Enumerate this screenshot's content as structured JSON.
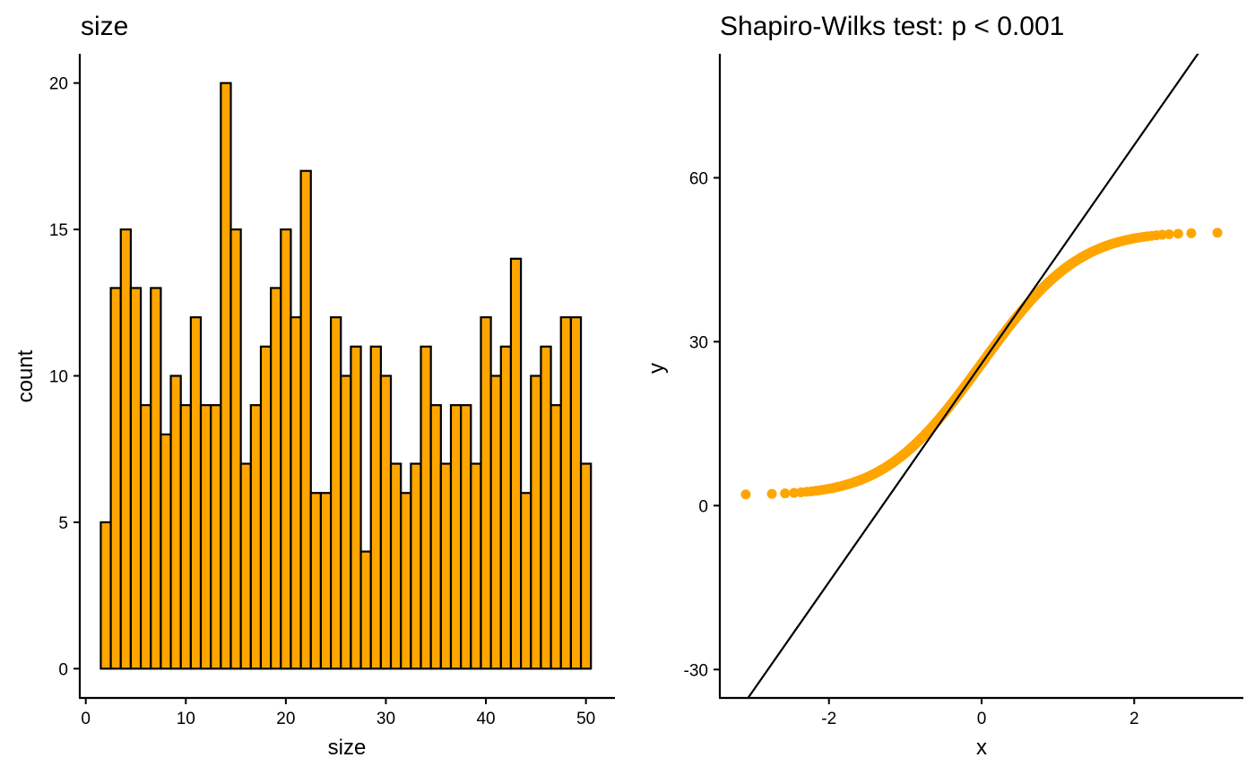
{
  "colors": {
    "fill": "#FFA500",
    "outline": "#000000",
    "background": "#FFFFFF"
  },
  "chart_data": [
    {
      "type": "bar",
      "subtype": "histogram",
      "title": "size",
      "xlabel": "size",
      "ylabel": "count",
      "bin_width": 1,
      "bin_centers": [
        2,
        3,
        4,
        5,
        6,
        7,
        8,
        9,
        10,
        11,
        12,
        13,
        14,
        15,
        16,
        17,
        18,
        19,
        20,
        21,
        22,
        23,
        24,
        25,
        26,
        27,
        28,
        29,
        30,
        31,
        32,
        33,
        34,
        35,
        36,
        37,
        38,
        39,
        40,
        41,
        42,
        43,
        44,
        45,
        46,
        47,
        48,
        49,
        50
      ],
      "values": [
        5,
        13,
        15,
        13,
        9,
        13,
        8,
        10,
        9,
        12,
        9,
        9,
        20,
        15,
        7,
        9,
        11,
        13,
        15,
        12,
        17,
        6,
        6,
        12,
        10,
        11,
        4,
        11,
        10,
        7,
        6,
        7,
        11,
        9,
        7,
        9,
        9,
        7,
        12,
        10,
        11,
        14,
        6,
        10,
        11,
        9,
        12,
        12,
        7
      ],
      "xlim": [
        -0.6,
        52.9
      ],
      "ylim": [
        -1,
        21
      ],
      "x_ticks": [
        0,
        10,
        20,
        30,
        40,
        50
      ],
      "x_tick_labels": [
        "0",
        "10",
        "20",
        "30",
        "40",
        "50"
      ],
      "y_ticks": [
        0,
        5,
        10,
        15,
        20
      ],
      "y_tick_labels": [
        "0",
        "5",
        "10",
        "15",
        "20"
      ],
      "grid": false
    },
    {
      "type": "scatter",
      "subtype": "qq-plot",
      "title": "Shapiro-Wilks test: p < 0.001",
      "xlabel": "x",
      "ylabel": "y",
      "sample_size": 500,
      "y_min": 2,
      "y_max": 50,
      "reference_line": {
        "intercept": 26,
        "slope": 20
      },
      "xlim": [
        -3.43,
        3.43
      ],
      "ylim": [
        -35.2,
        82.7
      ],
      "x_ticks": [
        -2,
        0,
        2
      ],
      "x_tick_labels": [
        "-2",
        "0",
        "2"
      ],
      "y_ticks": [
        -30,
        0,
        30,
        60
      ],
      "y_tick_labels": [
        "-30",
        "0",
        "30",
        "60"
      ],
      "grid": false
    }
  ]
}
